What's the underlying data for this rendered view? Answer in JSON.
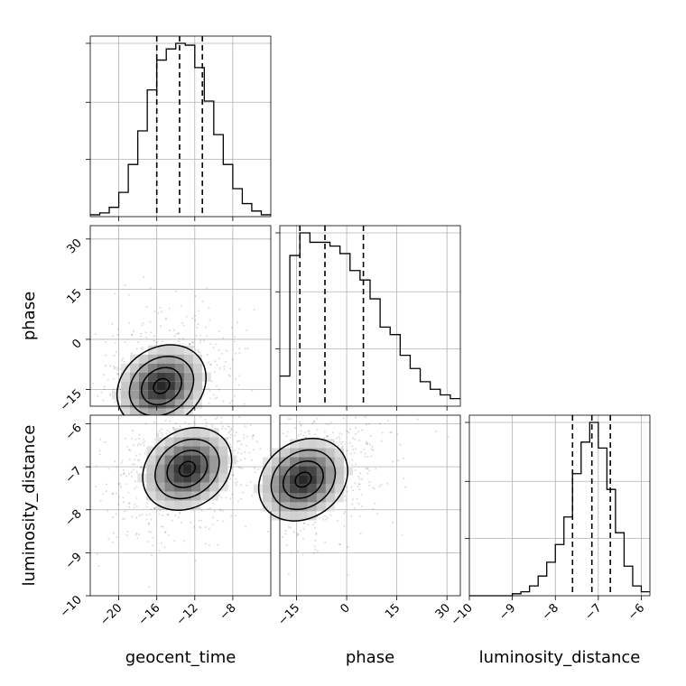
{
  "chart_data": {
    "type": "corner",
    "parameters": [
      "geocent_time",
      "phase",
      "luminosity_distance"
    ],
    "axis_labels": {
      "x": [
        "geocent_time",
        "phase",
        "luminosity_distance"
      ],
      "y": [
        "phase",
        "luminosity_distance"
      ]
    },
    "ranges": {
      "geocent_time": [
        -23,
        -4
      ],
      "phase": [
        -20,
        34
      ],
      "luminosity_distance": [
        -10,
        -5.8
      ]
    },
    "ticks": {
      "geocent_time": [
        -20,
        -16,
        -12,
        -8
      ],
      "phase": [
        -15,
        0,
        15,
        30
      ],
      "luminosity_distance": [
        -10,
        -9,
        -8,
        -7,
        -6
      ]
    },
    "tick_labels": {
      "geocent_time": [
        "−20",
        "−16",
        "−12",
        "−8"
      ],
      "phase": [
        "−15",
        "0",
        "15",
        "30"
      ],
      "luminosity_distance": [
        "−10",
        "−9",
        "−8",
        "−7",
        "−6"
      ]
    },
    "grid": true,
    "histograms": {
      "geocent_time": {
        "bin_edges": [
          -23,
          -22,
          -21,
          -20,
          -19,
          -18,
          -17,
          -16,
          -15,
          -14,
          -13,
          -12,
          -11,
          -10,
          -9,
          -8,
          -7,
          -6,
          -5,
          -4
        ],
        "counts": [
          1,
          2,
          5,
          13,
          28,
          46,
          68,
          84,
          90,
          93,
          92,
          80,
          62,
          44,
          28,
          15,
          7,
          3,
          1
        ],
        "quantiles": [
          -16.0,
          -13.6,
          -11.2
        ]
      },
      "phase": {
        "bin_edges": [
          -20,
          -17,
          -14,
          -11,
          -8,
          -5,
          -2,
          1,
          4,
          7,
          10,
          13,
          16,
          19,
          22,
          25,
          28,
          31,
          34
        ],
        "counts": [
          16,
          80,
          92,
          87,
          87,
          85,
          81,
          72,
          67,
          57,
          42,
          38,
          27,
          20,
          13,
          9,
          6,
          4
        ],
        "quantiles": [
          -14.0,
          -6.5,
          5.0
        ]
      },
      "luminosity_distance": {
        "bin_edges": [
          -10,
          -9.8,
          -9.6,
          -9.4,
          -9.2,
          -9.0,
          -8.8,
          -8.6,
          -8.4,
          -8.2,
          -8.0,
          -7.8,
          -7.6,
          -7.4,
          -7.2,
          -7.0,
          -6.8,
          -6.6,
          -6.4,
          -6.2,
          -6.0,
          -5.8
        ],
        "counts": [
          0,
          0,
          0,
          0,
          0,
          1,
          2,
          5,
          10,
          17,
          26,
          40,
          62,
          78,
          88,
          75,
          54,
          32,
          15,
          5,
          2
        ],
        "quantiles": [
          -7.6,
          -7.15,
          -6.72
        ]
      }
    },
    "joint": [
      {
        "x": "geocent_time",
        "y": "phase",
        "peak": [
          -15.5,
          -14
        ],
        "levels": 4
      },
      {
        "x": "geocent_time",
        "y": "luminosity_distance",
        "peak": [
          -12.8,
          -7.05
        ],
        "levels": 4
      },
      {
        "x": "phase",
        "y": "luminosity_distance",
        "peak": [
          -13,
          -7.3
        ],
        "levels": 4
      }
    ]
  }
}
